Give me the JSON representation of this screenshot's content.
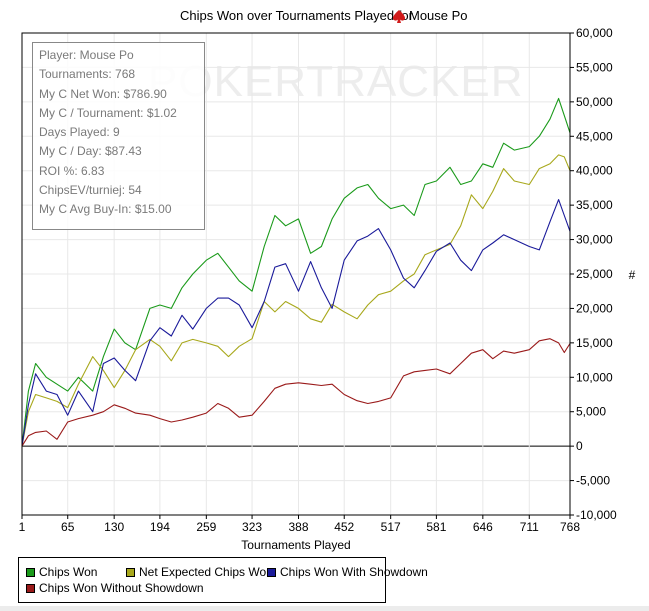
{
  "title": "Chips Won over Tournaments Played for",
  "player_name": "Mouse Po",
  "player_icon": "red-spade-icon",
  "watermark": "POKERTRACKER",
  "stats": [
    "Player: Mouse Po",
    "Tournaments: 768",
    "My C Net Won: $786.90",
    "My C / Tournament: $1.02",
    "Days Played: 9",
    "My C / Day: $87.43",
    "ROI %: 6.83",
    "ChipsEV/turniej: 54",
    "My C Avg Buy-In: $15.00"
  ],
  "chart_data": {
    "type": "line",
    "title": "Chips Won over Tournaments Played for Mouse Po",
    "xlabel": "Tournaments Played",
    "ylabel": "#",
    "xlim": [
      1,
      768
    ],
    "ylim": [
      -10000,
      60000
    ],
    "grid": true,
    "legend_placement": "bottom-left",
    "x_ticks": [
      "1",
      "65",
      "130",
      "194",
      "259",
      "323",
      "388",
      "452",
      "517",
      "581",
      "646",
      "711",
      "768"
    ],
    "y_ticks": [
      "60,000",
      "55,000",
      "50,000",
      "45,000",
      "40,000",
      "35,000",
      "30,000",
      "25,000",
      "20,000",
      "15,000",
      "10,000",
      "5,000",
      "0",
      "-5,000",
      "-10,000"
    ],
    "x": [
      1,
      10,
      20,
      35,
      50,
      65,
      80,
      100,
      115,
      130,
      145,
      160,
      180,
      194,
      210,
      225,
      240,
      259,
      275,
      290,
      305,
      323,
      340,
      355,
      370,
      388,
      405,
      420,
      435,
      452,
      470,
      485,
      500,
      517,
      535,
      550,
      565,
      581,
      600,
      615,
      630,
      646,
      660,
      675,
      690,
      711,
      725,
      740,
      752,
      760,
      768
    ],
    "series": [
      {
        "name": "Chips Won",
        "color": "#1a9a1a",
        "values": [
          0,
          8000,
          12000,
          10000,
          9000,
          8000,
          10000,
          8000,
          13000,
          17000,
          15000,
          14000,
          20000,
          20500,
          20000,
          23000,
          25000,
          27000,
          28000,
          26000,
          24000,
          22500,
          29000,
          33500,
          32000,
          33000,
          28000,
          29000,
          33000,
          36000,
          37500,
          38000,
          36000,
          34500,
          35000,
          33500,
          38000,
          38500,
          40500,
          38000,
          38500,
          41000,
          40500,
          44000,
          43000,
          43500,
          45000,
          47500,
          50500,
          48000,
          45500
        ]
      },
      {
        "name": "Net Expected Chips Won",
        "color": "#a8a81c",
        "values": [
          0,
          5000,
          7500,
          7000,
          6500,
          5600,
          9000,
          13000,
          11000,
          8500,
          11000,
          14000,
          15500,
          14500,
          12400,
          15000,
          15500,
          15000,
          14500,
          13000,
          14500,
          15600,
          21000,
          19500,
          21000,
          20000,
          18500,
          18000,
          20600,
          19500,
          18500,
          20500,
          22000,
          22500,
          24000,
          25000,
          27800,
          28500,
          29300,
          32000,
          36500,
          34500,
          37000,
          40300,
          38500,
          38000,
          40300,
          41000,
          42300,
          42000,
          40000
        ]
      },
      {
        "name": "Chips Won With Showdown",
        "color": "#1a1a9a",
        "values": [
          0,
          6000,
          10500,
          8000,
          7500,
          4500,
          8000,
          5000,
          12000,
          12800,
          11000,
          9500,
          15300,
          17200,
          16000,
          19000,
          17000,
          20000,
          21500,
          21500,
          20500,
          17200,
          21000,
          26000,
          26500,
          22500,
          26800,
          23000,
          20000,
          27000,
          29800,
          30500,
          31600,
          28500,
          24400,
          23000,
          25500,
          28300,
          29500,
          27000,
          25500,
          28500,
          29500,
          30700,
          30000,
          29000,
          28500,
          32600,
          35800,
          33500,
          31200
        ]
      },
      {
        "name": "Chips Won Without Showdown",
        "color": "#9a1a1a",
        "values": [
          0,
          1500,
          2000,
          2200,
          1000,
          3500,
          4000,
          4500,
          5000,
          6000,
          5500,
          4800,
          4500,
          4000,
          3500,
          3800,
          4200,
          4800,
          6200,
          5500,
          4200,
          4500,
          6500,
          8400,
          9000,
          9200,
          9000,
          8800,
          9000,
          7500,
          6600,
          6200,
          6500,
          7000,
          10200,
          10800,
          11000,
          11200,
          10500,
          12000,
          13500,
          14000,
          12700,
          13800,
          13500,
          14000,
          15300,
          15600,
          15000,
          13600,
          14900
        ]
      }
    ]
  }
}
